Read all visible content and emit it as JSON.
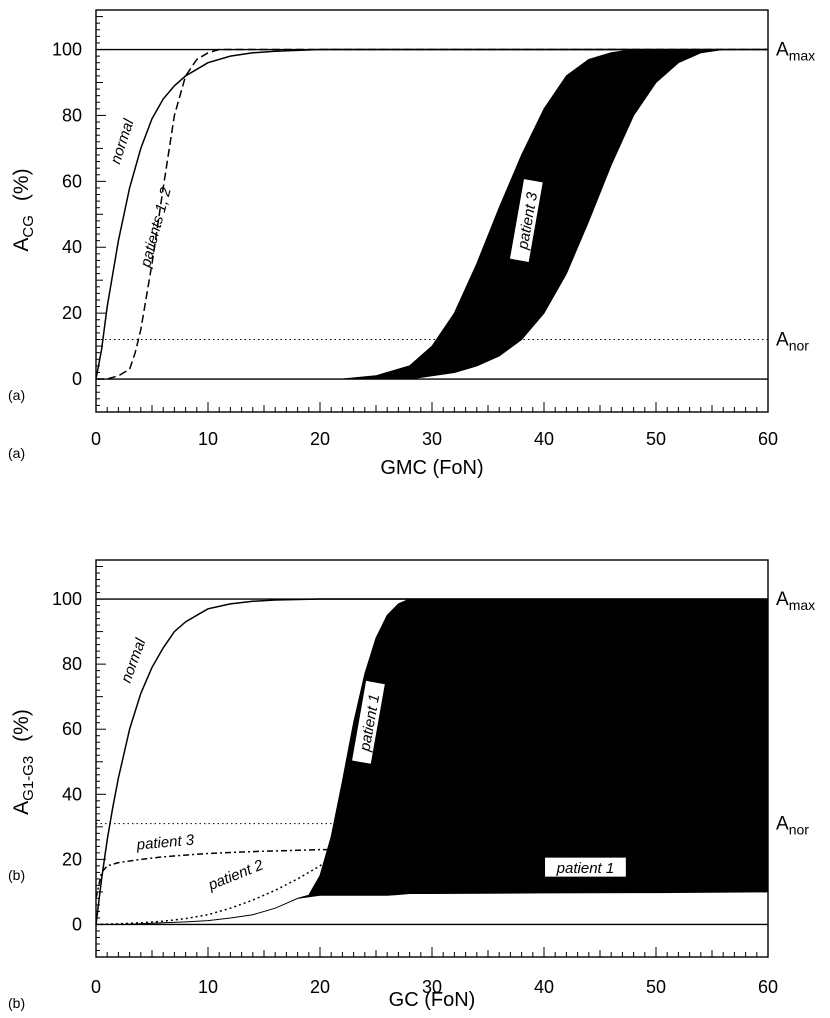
{
  "chart_data": [
    {
      "type": "line",
      "panel_tag": "(a)",
      "caption_tag": "(a)",
      "xlabel": "GMC (FoN)",
      "ylabel_main": "A",
      "ylabel_sub": "CG",
      "ylabel_unit": "(%)",
      "xlim": [
        0,
        60
      ],
      "ylim": [
        -10,
        112
      ],
      "xticks": [
        0,
        10,
        20,
        30,
        40,
        50,
        60
      ],
      "yticks": [
        0,
        20,
        40,
        60,
        80,
        100
      ],
      "ref_lines": {
        "Amax": {
          "value": 100,
          "label_main": "A",
          "label_sub": "max"
        },
        "Anor": {
          "value": 12,
          "label_main": "A",
          "label_sub": "nor"
        }
      },
      "series": [
        {
          "name": "normal",
          "style": "solid",
          "x": [
            0,
            0.5,
            1,
            1.5,
            2,
            3,
            4,
            5,
            6,
            7,
            8,
            9,
            10,
            12,
            14,
            16,
            20,
            25,
            30,
            40,
            50,
            60
          ],
          "y": [
            0,
            9,
            22,
            32,
            42,
            58,
            70,
            79,
            85,
            89,
            92,
            94,
            96,
            98,
            99,
            99.5,
            100,
            100,
            100,
            100,
            100,
            100
          ]
        },
        {
          "name": "patients 1, 2",
          "style": "dashed",
          "x": [
            0,
            1,
            2,
            3,
            3.5,
            4,
            5,
            6,
            7,
            8,
            9,
            10,
            11,
            12,
            20,
            40,
            60
          ],
          "y": [
            0,
            0,
            1,
            3,
            8,
            15,
            35,
            58,
            80,
            92,
            97,
            99,
            100,
            100,
            100,
            100,
            100
          ]
        },
        {
          "name": "patient 3",
          "style": "band",
          "x": [
            0,
            10,
            20,
            22,
            25,
            28,
            30,
            32,
            34,
            36,
            38,
            40,
            42,
            44,
            46,
            48,
            50,
            52,
            54,
            56,
            60
          ],
          "y_low": [
            0,
            0,
            0,
            0,
            0,
            0,
            1,
            2,
            4,
            7,
            12,
            20,
            32,
            48,
            65,
            80,
            90,
            96,
            99,
            100,
            100
          ],
          "y_high": [
            0,
            0,
            0,
            0,
            1,
            4,
            10,
            20,
            35,
            52,
            68,
            82,
            92,
            97,
            99,
            100,
            100,
            100,
            100,
            100,
            100
          ]
        }
      ]
    },
    {
      "type": "line",
      "panel_tag": "(b)",
      "caption_tag": "(b)",
      "xlabel": "GC (FoN)",
      "ylabel_main": "A",
      "ylabel_sub": "G1-G3",
      "ylabel_unit": "(%)",
      "xlim": [
        0,
        60
      ],
      "ylim": [
        -10,
        112
      ],
      "xticks": [
        0,
        10,
        20,
        30,
        40,
        50,
        60
      ],
      "yticks": [
        0,
        20,
        40,
        60,
        80,
        100
      ],
      "ref_lines": {
        "Amax": {
          "value": 100,
          "label_main": "A",
          "label_sub": "max"
        },
        "Anor": {
          "value": 31,
          "label_main": "A",
          "label_sub": "nor"
        }
      },
      "series": [
        {
          "name": "normal",
          "style": "solid",
          "x": [
            0,
            0.5,
            1,
            1.5,
            2,
            3,
            4,
            5,
            6,
            7,
            8,
            9,
            10,
            12,
            14,
            16,
            20,
            25,
            30,
            40,
            50,
            60
          ],
          "y": [
            0,
            14,
            26,
            36,
            45,
            60,
            71,
            79,
            85,
            90,
            93,
            95,
            97,
            98.5,
            99.3,
            99.7,
            100,
            100,
            100,
            100,
            100,
            100
          ]
        },
        {
          "name": "patient 3",
          "style": "dashdot",
          "x": [
            0,
            0.5,
            1,
            2,
            4,
            6,
            8,
            10,
            12,
            14,
            16,
            18,
            20,
            21
          ],
          "y": [
            8,
            16,
            18,
            19,
            20,
            20.8,
            21.3,
            21.8,
            22.1,
            22.4,
            22.6,
            22.8,
            23,
            23
          ]
        },
        {
          "name": "patient 2",
          "style": "dotted",
          "x": [
            0,
            2,
            4,
            6,
            8,
            10,
            12,
            14,
            16,
            18,
            20,
            21
          ],
          "y": [
            0,
            0.2,
            0.5,
            1,
            1.8,
            3,
            5,
            7.5,
            10.5,
            14,
            18,
            21
          ]
        },
        {
          "name": "patient 1",
          "style": "band",
          "x": [
            0,
            2,
            4,
            6,
            8,
            10,
            12,
            14,
            16,
            17,
            18,
            19,
            20,
            21,
            22,
            23,
            24,
            25,
            26,
            27,
            28,
            30,
            40,
            50,
            60
          ],
          "y_low": [
            0,
            0,
            0.2,
            0.5,
            0.8,
            1.2,
            2,
            3,
            5,
            6.5,
            8,
            8.5,
            9,
            9,
            9,
            9,
            9,
            9,
            9,
            9.2,
            9.5,
            9.5,
            9.7,
            9.8,
            10
          ],
          "y_high": [
            0,
            0,
            0.2,
            0.5,
            0.8,
            1.2,
            2,
            3,
            5,
            6.5,
            8,
            9,
            15,
            27,
            44,
            62,
            77,
            88,
            95,
            98.5,
            100,
            100,
            100,
            100,
            100
          ]
        }
      ],
      "band_labels": [
        "patient 1",
        "patient 1"
      ]
    }
  ]
}
